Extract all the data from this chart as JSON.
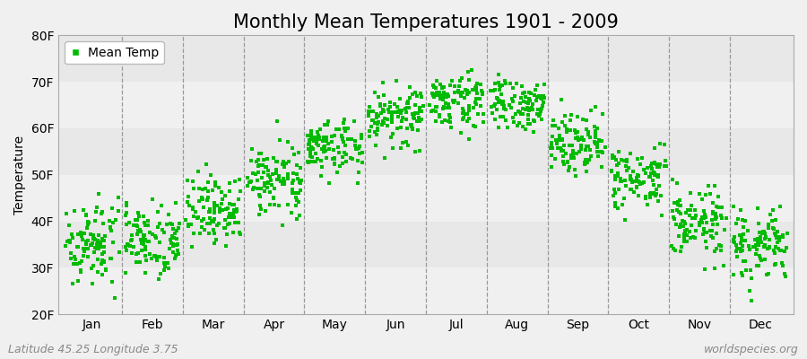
{
  "title": "Monthly Mean Temperatures 1901 - 2009",
  "ylabel": "Temperature",
  "ylim": [
    20,
    80
  ],
  "yticks": [
    20,
    30,
    40,
    50,
    60,
    70,
    80
  ],
  "ytick_labels": [
    "20F",
    "30F",
    "40F",
    "50F",
    "60F",
    "70F",
    "80F"
  ],
  "months": [
    "Jan",
    "Feb",
    "Mar",
    "Apr",
    "May",
    "Jun",
    "Jul",
    "Aug",
    "Sep",
    "Oct",
    "Nov",
    "Dec"
  ],
  "n_years": 109,
  "marker_color": "#00bb00",
  "marker_size": 3,
  "background_color": "#f0f0f0",
  "plot_bg_bands": [
    "#f0f0f0",
    "#e8e8e8"
  ],
  "mean_temps_f": [
    35.5,
    36.5,
    42.5,
    49.0,
    56.0,
    62.5,
    66.0,
    65.0,
    57.5,
    49.0,
    39.5,
    34.5
  ],
  "std_temps_f": [
    4.5,
    4.0,
    3.8,
    3.5,
    3.2,
    3.2,
    2.8,
    2.8,
    3.2,
    3.5,
    3.8,
    4.0
  ],
  "footnote_left": "Latitude 45.25 Longitude 3.75",
  "footnote_right": "worldspecies.org",
  "legend_label": "Mean Temp",
  "title_fontsize": 15,
  "axis_fontsize": 10,
  "tick_fontsize": 10,
  "footnote_fontsize": 9,
  "vline_color": "#999999",
  "vline_positions": [
    1,
    2,
    3,
    4,
    5,
    6,
    7,
    8,
    9,
    10,
    11
  ]
}
